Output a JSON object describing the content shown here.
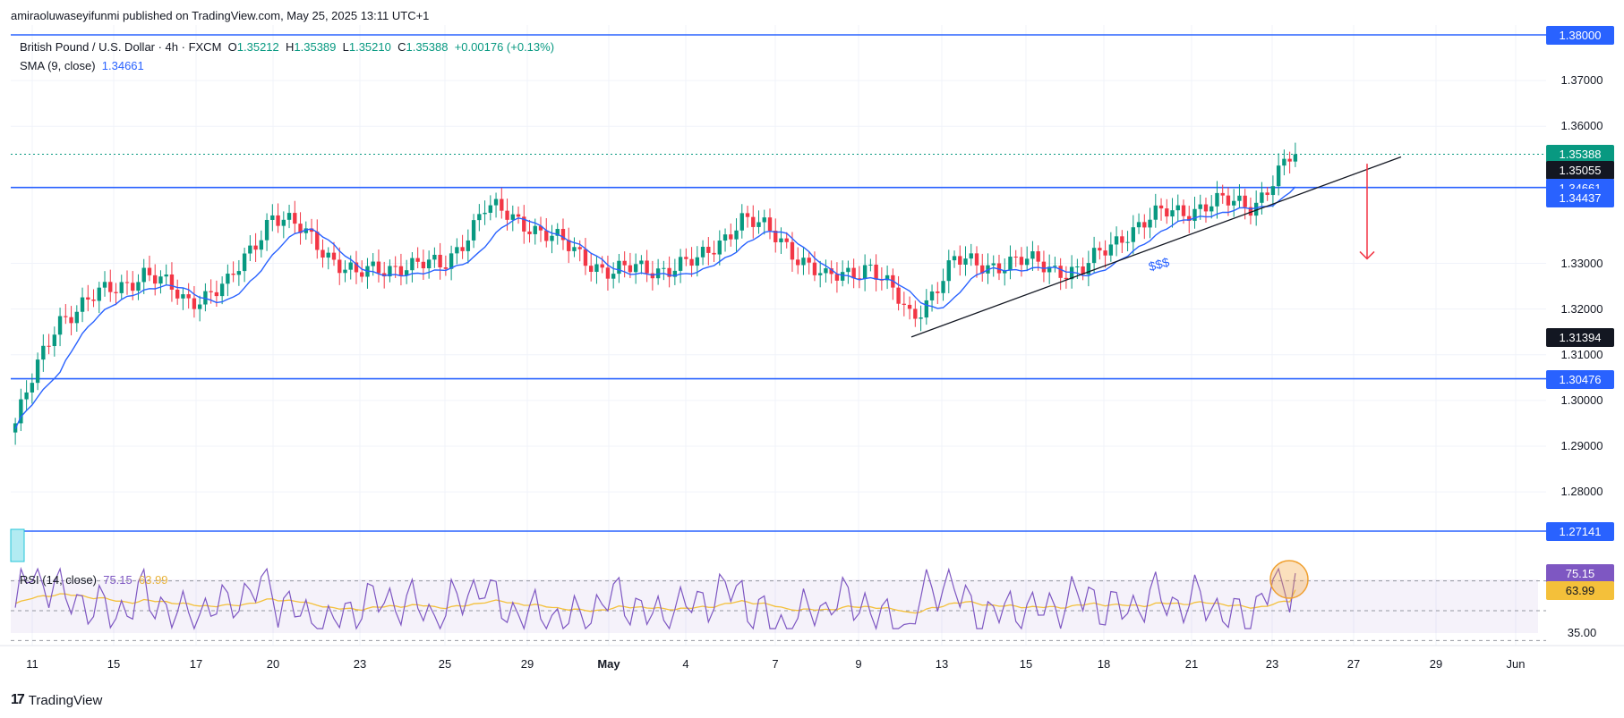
{
  "header": {
    "published": "amiraoluwaseyifunmi published on TradingView.com, May 25, 2025 13:11 UTC+1",
    "symbol": "British Pound / U.S. Dollar · 4h · FXCM",
    "o_label": "O",
    "o_value": "1.35212",
    "h_label": "H",
    "h_value": "1.35389",
    "l_label": "L",
    "l_value": "1.35210",
    "c_label": "C",
    "c_value": "1.35388",
    "change": "+0.00176 (+0.13%)",
    "sma_label": "SMA (9, close)",
    "sma_value": "1.34661",
    "rsi_label": "RSI (14, close)",
    "rsi_value": "75.15",
    "rsi_ma_value": "63.99"
  },
  "footer": {
    "brand": "TradingView"
  },
  "colors": {
    "up": "#089981",
    "down": "#f23645",
    "level": "#2962ff",
    "sma": "#2962ff",
    "rsi": "#7e57c2",
    "rsi_ma": "#f4c03a",
    "arrow": "#f23645",
    "trendline": "#131722"
  },
  "price_labels": [
    {
      "text": "1.38000",
      "price": 1.38,
      "kind": "level"
    },
    {
      "text": "1.35388",
      "price": 1.35388,
      "kind": "last"
    },
    {
      "text": "1.35055",
      "price": 1.35055,
      "kind": "mark"
    },
    {
      "text": "1.34661",
      "price": 1.34661,
      "kind": "level"
    },
    {
      "text": "1.34437",
      "price": 1.34437,
      "kind": "level"
    },
    {
      "text": "1.31394",
      "price": 1.31394,
      "kind": "mark"
    },
    {
      "text": "1.30476",
      "price": 1.30476,
      "kind": "level"
    },
    {
      "text": "1.27141",
      "price": 1.27141,
      "kind": "level"
    }
  ],
  "price_ticks": [
    {
      "text": "1.37000",
      "price": 1.37
    },
    {
      "text": "1.36000",
      "price": 1.36
    },
    {
      "text": "1.33000",
      "price": 1.33
    },
    {
      "text": "1.32000",
      "price": 1.32
    },
    {
      "text": "1.31000",
      "price": 1.31
    },
    {
      "text": "1.30000",
      "price": 1.3
    },
    {
      "text": "1.29000",
      "price": 1.29
    },
    {
      "text": "1.28000",
      "price": 1.28
    }
  ],
  "rsi_labels": [
    {
      "text": "75.15",
      "value": 75.15,
      "kind": "rsi"
    },
    {
      "text": "63.99",
      "value": 63.99,
      "kind": "ma"
    },
    {
      "text": "35.00",
      "value": 35,
      "kind": "tick"
    }
  ],
  "annotation": {
    "liquidity": "$$$"
  },
  "chart_data": {
    "type": "candlestick",
    "title": "British Pound / U.S. Dollar · 4h · FXCM",
    "ylim": [
      1.265,
      1.383
    ],
    "horizontal_levels": [
      1.38,
      1.34661,
      1.30476,
      1.27141
    ],
    "last_price": 1.35388,
    "x_ticks": [
      "11",
      "15",
      "17",
      "20",
      "23",
      "25",
      "29",
      "May",
      "4",
      "7",
      "9",
      "13",
      "15",
      "18",
      "21",
      "23",
      "27",
      "29",
      "Jun"
    ],
    "trendline": {
      "from": {
        "x": "May 11",
        "y": 1.3139
      },
      "to": {
        "x": "May 27",
        "y": 1.3508
      }
    },
    "projection_arrow": {
      "x": "May 27",
      "from": 1.3508,
      "to": 1.331
    },
    "candles_close_approx": [
      {
        "date": "Apr 11",
        "close": 1.295
      },
      {
        "date": "Apr 14",
        "close": 1.318
      },
      {
        "date": "Apr 15",
        "close": 1.323
      },
      {
        "date": "Apr 16",
        "close": 1.328
      },
      {
        "date": "Apr 17",
        "close": 1.322
      },
      {
        "date": "Apr 18",
        "close": 1.325
      },
      {
        "date": "Apr 21",
        "close": 1.341
      },
      {
        "date": "Apr 22",
        "close": 1.335
      },
      {
        "date": "Apr 23",
        "close": 1.327
      },
      {
        "date": "Apr 24",
        "close": 1.33
      },
      {
        "date": "Apr 25",
        "close": 1.329
      },
      {
        "date": "Apr 28",
        "close": 1.342
      },
      {
        "date": "Apr 29",
        "close": 1.339
      },
      {
        "date": "Apr 30",
        "close": 1.333
      },
      {
        "date": "May 1",
        "close": 1.328
      },
      {
        "date": "May 2",
        "close": 1.329
      },
      {
        "date": "May 5",
        "close": 1.33
      },
      {
        "date": "May 6",
        "close": 1.34
      },
      {
        "date": "May 7",
        "close": 1.335
      },
      {
        "date": "May 8",
        "close": 1.326
      },
      {
        "date": "May 9",
        "close": 1.33
      },
      {
        "date": "May 12",
        "close": 1.318
      },
      {
        "date": "May 13",
        "close": 1.33
      },
      {
        "date": "May 14",
        "close": 1.33
      },
      {
        "date": "May 15",
        "close": 1.33
      },
      {
        "date": "May 16",
        "close": 1.328
      },
      {
        "date": "May 19",
        "close": 1.337
      },
      {
        "date": "May 20",
        "close": 1.341
      },
      {
        "date": "May 21",
        "close": 1.343
      },
      {
        "date": "May 22",
        "close": 1.343
      },
      {
        "date": "May 23",
        "close": 1.3539
      }
    ],
    "rsi": {
      "period": 14,
      "last": 75.15,
      "ma_last": 63.99,
      "levels": [
        70,
        50,
        30
      ],
      "ylim": [
        30,
        85
      ]
    }
  }
}
